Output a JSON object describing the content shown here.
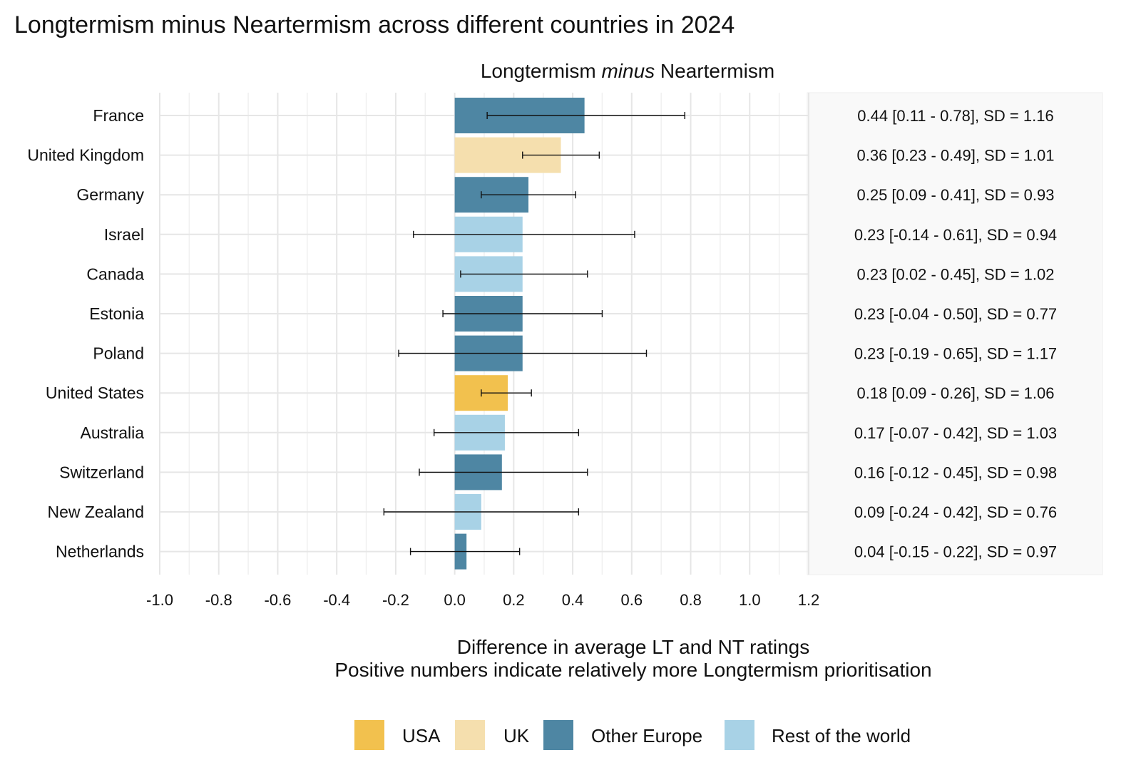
{
  "chart_data": {
    "type": "bar",
    "orientation": "horizontal",
    "title": "Longtermism minus Neartermism across different countries in 2024",
    "subtitle": {
      "before": "Longtermism ",
      "italic": "minus",
      "after": " Neartermism"
    },
    "xlabel_lines": [
      "Difference in average LT and NT ratings",
      "Positive numbers indicate relatively more Longtermism prioritisation"
    ],
    "xlim": [
      -1.0,
      1.2
    ],
    "xticks": [
      -1.0,
      -0.8,
      -0.6,
      -0.4,
      -0.2,
      0.0,
      0.2,
      0.4,
      0.6,
      0.8,
      1.0,
      1.2
    ],
    "xtick_labels": [
      "-1.0",
      "-0.8",
      "-0.6",
      "-0.4",
      "-0.2",
      "0.0",
      "0.2",
      "0.4",
      "0.6",
      "0.8",
      "1.0",
      "1.2"
    ],
    "groups": [
      {
        "name": "USA",
        "color": "#F2C14E"
      },
      {
        "name": "UK",
        "color": "#F5DFAE"
      },
      {
        "name": "Other Europe",
        "color": "#4E86A3"
      },
      {
        "name": "Rest of the world",
        "color": "#A8D2E6"
      }
    ],
    "rows": [
      {
        "country": "France",
        "value": 0.44,
        "ci": [
          0.11,
          0.78
        ],
        "sd": 1.16,
        "group": "Other Europe",
        "label": "0.44 [0.11 - 0.78], SD = 1.16"
      },
      {
        "country": "United Kingdom",
        "value": 0.36,
        "ci": [
          0.23,
          0.49
        ],
        "sd": 1.01,
        "group": "UK",
        "label": "0.36 [0.23 - 0.49], SD = 1.01"
      },
      {
        "country": "Germany",
        "value": 0.25,
        "ci": [
          0.09,
          0.41
        ],
        "sd": 0.93,
        "group": "Other Europe",
        "label": "0.25 [0.09 - 0.41], SD = 0.93"
      },
      {
        "country": "Israel",
        "value": 0.23,
        "ci": [
          -0.14,
          0.61
        ],
        "sd": 0.94,
        "group": "Rest of the world",
        "label": "0.23 [-0.14 - 0.61], SD = 0.94"
      },
      {
        "country": "Canada",
        "value": 0.23,
        "ci": [
          0.02,
          0.45
        ],
        "sd": 1.02,
        "group": "Rest of the world",
        "label": "0.23 [0.02 - 0.45], SD = 1.02"
      },
      {
        "country": "Estonia",
        "value": 0.23,
        "ci": [
          -0.04,
          0.5
        ],
        "sd": 0.77,
        "group": "Other Europe",
        "label": "0.23 [-0.04 - 0.50], SD = 0.77"
      },
      {
        "country": "Poland",
        "value": 0.23,
        "ci": [
          -0.19,
          0.65
        ],
        "sd": 1.17,
        "group": "Other Europe",
        "label": "0.23 [-0.19 - 0.65], SD = 1.17"
      },
      {
        "country": "United States",
        "value": 0.18,
        "ci": [
          0.09,
          0.26
        ],
        "sd": 1.06,
        "group": "USA",
        "label": "0.18 [0.09 - 0.26], SD = 1.06"
      },
      {
        "country": "Australia",
        "value": 0.17,
        "ci": [
          -0.07,
          0.42
        ],
        "sd": 1.03,
        "group": "Rest of the world",
        "label": "0.17 [-0.07 - 0.42], SD = 1.03"
      },
      {
        "country": "Switzerland",
        "value": 0.16,
        "ci": [
          -0.12,
          0.45
        ],
        "sd": 0.98,
        "group": "Other Europe",
        "label": "0.16 [-0.12 - 0.45], SD = 0.98"
      },
      {
        "country": "New Zealand",
        "value": 0.09,
        "ci": [
          -0.24,
          0.42
        ],
        "sd": 0.76,
        "group": "Rest of the world",
        "label": "0.09 [-0.24 - 0.42], SD = 0.76"
      },
      {
        "country": "Netherlands",
        "value": 0.04,
        "ci": [
          -0.15,
          0.22
        ],
        "sd": 0.97,
        "group": "Other Europe",
        "label": "0.04 [-0.15 - 0.22], SD = 0.97"
      }
    ],
    "legend_position": "bottom"
  }
}
